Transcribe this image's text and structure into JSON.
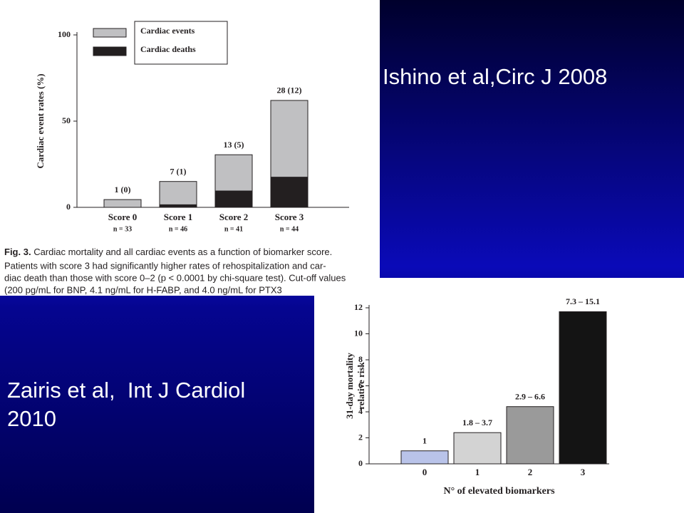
{
  "slide": {
    "ishino": "Ishino et al,Circ J 2008",
    "zairis": [
      "Zairis et al,  Int J Cardiol",
      "2010"
    ]
  },
  "caption": {
    "label": "Fig. 3.",
    "lines": [
      "Cardiac mortality and all cardiac events as a function of biomarker score.",
      "Patients with score 3 had significantly higher rates of rehospitalization and car-",
      "diac death than those with score 0–2 (p < 0.0001 by chi-square test). Cut-off values",
      "(200 pg/mL for BNP, 4.1 ng/mL for H-FABP, and 4.0 ng/mL for PTX3"
    ]
  },
  "chart_data": [
    {
      "type": "bar",
      "ylabel": "Cardiac event rates (%)",
      "categories": [
        "Score 0",
        "Score 1",
        "Score 2",
        "Score 3"
      ],
      "category_counts": [
        "n = 33",
        "n = 46",
        "n = 41",
        "n = 44"
      ],
      "series": [
        {
          "name": "Cardiac events",
          "color": "#c0c0c2",
          "values": [
            4.5,
            15,
            30.5,
            62
          ]
        },
        {
          "name": "Cardiac deaths",
          "color": "#231f20",
          "values": [
            0,
            1.5,
            9.5,
            17.5
          ]
        }
      ],
      "bar_labels": [
        "1 (0)",
        "7 (1)",
        "13 (5)",
        "28 (12)"
      ],
      "ylim": [
        0,
        100
      ],
      "yticks": [
        0,
        50,
        100
      ],
      "legend": "top-left"
    },
    {
      "type": "bar",
      "ylabel": [
        "31-day mortality",
        "relative risk"
      ],
      "xlabel": "N° of elevated biomarkers",
      "categories": [
        "0",
        "1",
        "2",
        "3"
      ],
      "values": [
        1,
        2.4,
        4.4,
        11.7
      ],
      "colors": [
        "#b9c3e9",
        "#d3d3d3",
        "#9a9a9a",
        "#141414"
      ],
      "bar_labels": [
        "1",
        "1.8 – 3.7",
        "2.9 – 6.6",
        "7.3 – 15.1"
      ],
      "ylim": [
        0,
        12
      ],
      "yticks": [
        0,
        2,
        4,
        6,
        8,
        10,
        12
      ]
    }
  ]
}
